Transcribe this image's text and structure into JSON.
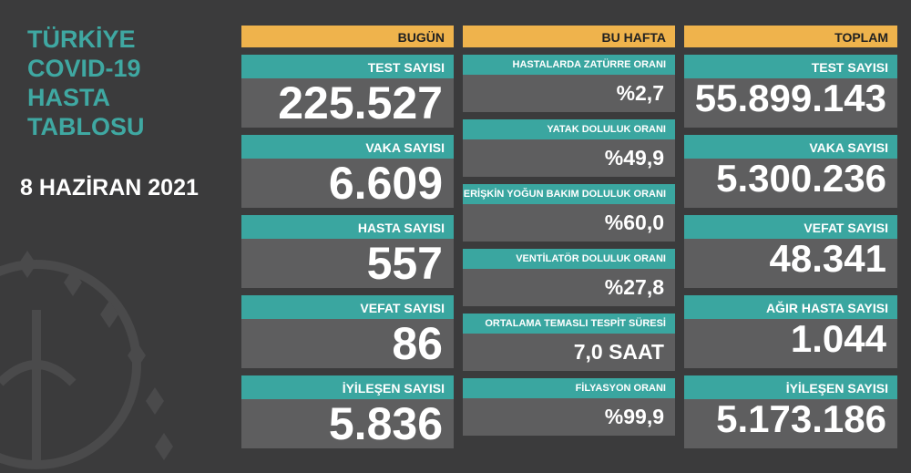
{
  "title": [
    "TÜRKİYE",
    "COVID-19",
    "HASTA",
    "TABLOSU"
  ],
  "date": "8 HAZİRAN 2021",
  "columns": [
    {
      "header": "BUGÜN",
      "items": [
        {
          "label": "TEST SAYISI",
          "value": "225.527"
        },
        {
          "label": "VAKA SAYISI",
          "value": "6.609"
        },
        {
          "label": "HASTA SAYISI",
          "value": "557"
        },
        {
          "label": "VEFAT SAYISI",
          "value": "86"
        },
        {
          "label": "İYİLEŞEN SAYISI",
          "value": "5.836"
        }
      ]
    },
    {
      "header": "BU HAFTA",
      "items": [
        {
          "label": "HASTALARDA ZATÜRRE ORANI",
          "value": "%2,7"
        },
        {
          "label": "YATAK DOLULUK ORANI",
          "value": "%49,9"
        },
        {
          "label": "ERİŞKİN YOĞUN BAKIM DOLULUK ORANI",
          "value": "%60,0"
        },
        {
          "label": "VENTİLATÖR DOLULUK ORANI",
          "value": "%27,8"
        },
        {
          "label": "ORTALAMA TEMASLI TESPİT SÜRESİ",
          "value": "7,0 SAAT"
        },
        {
          "label": "FİLYASYON ORANI",
          "value": "%99,9"
        }
      ]
    },
    {
      "header": "TOPLAM",
      "items": [
        {
          "label": "TEST SAYISI",
          "value": "55.899.143"
        },
        {
          "label": "VAKA SAYISI",
          "value": "5.300.236"
        },
        {
          "label": "VEFAT SAYISI",
          "value": "48.341"
        },
        {
          "label": "AĞIR HASTA SAYISI",
          "value": "1.044"
        },
        {
          "label": "İYİLEŞEN SAYISI",
          "value": "5.173.186"
        }
      ]
    }
  ]
}
